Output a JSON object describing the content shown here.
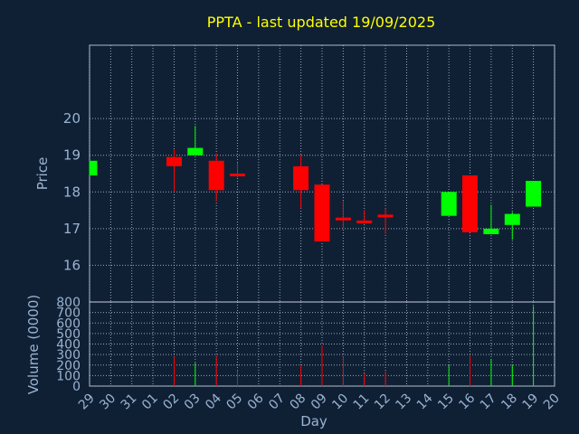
{
  "title": "PPTA - last updated 19/09/2025",
  "colors": {
    "up": "#00ff00",
    "down": "#ff0000",
    "background": "#0f2035",
    "title": "#ffff00",
    "axis_text": "#9bb3cf"
  },
  "chart_data": {
    "type": "candlestick",
    "title": "PPTA - last updated 19/09/2025",
    "xlabel": "Day",
    "price_axis": {
      "label": "Price",
      "ylim": [
        15.0,
        22.0
      ],
      "ticks": [
        16,
        17,
        18,
        19,
        20
      ]
    },
    "volume_axis": {
      "label": "Volume (0000)",
      "ylim": [
        0,
        800
      ],
      "ticks": [
        0,
        100,
        200,
        300,
        400,
        500,
        600,
        700,
        800
      ]
    },
    "x_ticks": [
      "29",
      "30",
      "31",
      "01",
      "02",
      "03",
      "04",
      "05",
      "06",
      "07",
      "08",
      "09",
      "10",
      "11",
      "12",
      "13",
      "14",
      "15",
      "16",
      "17",
      "18",
      "19",
      "20"
    ],
    "grid": true,
    "candles": [
      {
        "day": "29",
        "open": 18.45,
        "high": 18.85,
        "low": 18.45,
        "close": 18.85,
        "volume": 0
      },
      {
        "day": "02",
        "open": 18.95,
        "high": 19.15,
        "low": 18.0,
        "close": 18.7,
        "volume": 280
      },
      {
        "day": "03",
        "open": 19.0,
        "high": 19.8,
        "low": 19.0,
        "close": 19.2,
        "volume": 220
      },
      {
        "day": "04",
        "open": 18.85,
        "high": 19.05,
        "low": 17.75,
        "close": 18.05,
        "volume": 290
      },
      {
        "day": "05",
        "open": 18.5,
        "high": 18.8,
        "low": 18.4,
        "close": 18.45,
        "volume": 150
      },
      {
        "day": "08",
        "open": 18.7,
        "high": 19.0,
        "low": 17.55,
        "close": 18.05,
        "volume": 190
      },
      {
        "day": "09",
        "open": 18.2,
        "high": 18.2,
        "low": 16.65,
        "close": 16.65,
        "volume": 390
      },
      {
        "day": "10",
        "open": 17.3,
        "high": 17.75,
        "low": 17.0,
        "close": 17.25,
        "volume": 280
      },
      {
        "day": "11",
        "open": 17.22,
        "high": 17.5,
        "low": 17.15,
        "close": 17.17,
        "volume": 120
      },
      {
        "day": "12",
        "open": 17.38,
        "high": 17.55,
        "low": 16.85,
        "close": 17.33,
        "volume": 140
      },
      {
        "day": "15",
        "open": 17.35,
        "high": 18.0,
        "low": 17.35,
        "close": 18.0,
        "volume": 200
      },
      {
        "day": "16",
        "open": 18.45,
        "high": 18.45,
        "low": 16.9,
        "close": 16.9,
        "volume": 290
      },
      {
        "day": "17",
        "open": 16.85,
        "high": 17.65,
        "low": 16.85,
        "close": 17.0,
        "volume": 250
      },
      {
        "day": "18",
        "open": 17.1,
        "high": 17.45,
        "low": 16.7,
        "close": 17.4,
        "volume": 200
      },
      {
        "day": "19",
        "open": 17.6,
        "high": 18.3,
        "low": 17.6,
        "close": 18.3,
        "volume": 760
      }
    ]
  }
}
